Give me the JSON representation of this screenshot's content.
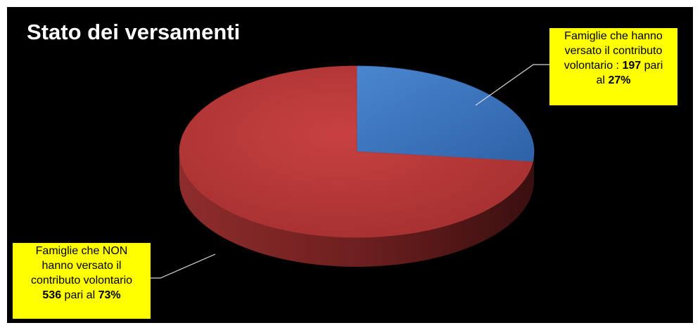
{
  "chart_data": {
    "type": "pie",
    "title": "Stato dei versamenti",
    "slices": [
      {
        "value": 197,
        "percent": 27,
        "color": "#3a75c4",
        "label_lines": [
          [
            "Famiglie che hanno"
          ],
          [
            "versato il contributo"
          ],
          [
            "volontario : ",
            {
              "b": "197"
            },
            " pari"
          ],
          [
            "al ",
            {
              "b": "27%"
            }
          ]
        ]
      },
      {
        "value": 536,
        "percent": 73,
        "color": "#c0393b",
        "label_lines": [
          [
            "Famiglie che NON"
          ],
          [
            "hanno versato il"
          ],
          [
            "contributo volontario"
          ],
          [
            {
              "b": "536"
            },
            " pari al ",
            {
              "b": "73%"
            }
          ]
        ]
      }
    ],
    "label_background": "#ffff00"
  }
}
